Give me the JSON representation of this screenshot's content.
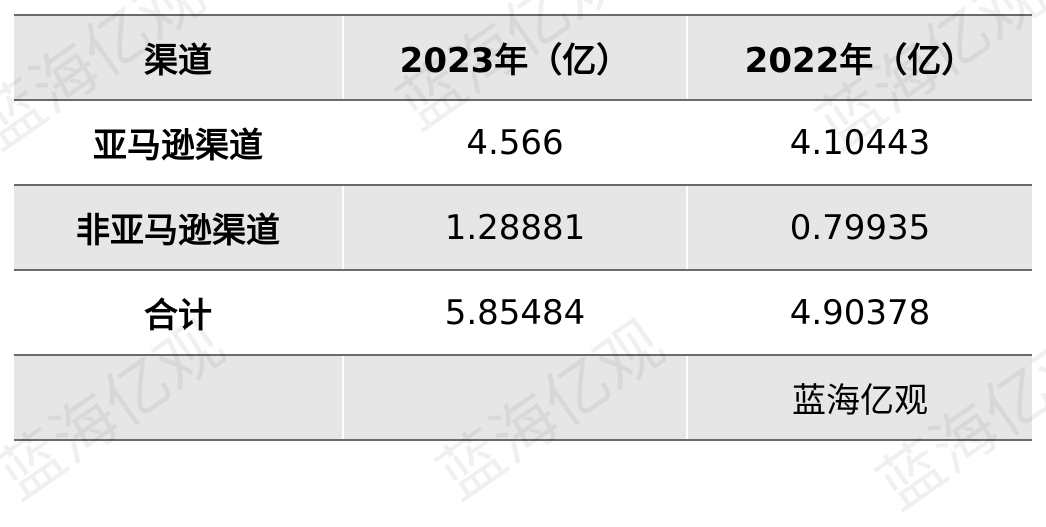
{
  "watermark": "蓝海亿观",
  "table": {
    "headers": [
      "渠道",
      "2023年（亿）",
      "2022年（亿）"
    ],
    "rows": [
      [
        "亚马逊渠道",
        "4.566",
        "4.10443"
      ],
      [
        "非亚马逊渠道",
        "1.28881",
        "0.79935"
      ],
      [
        "合计",
        "5.85484",
        "4.90378"
      ],
      [
        "",
        "",
        "蓝海亿观"
      ]
    ]
  },
  "colors": {
    "header_bg": "#e6e6e6",
    "border": "#6a6a6a"
  }
}
